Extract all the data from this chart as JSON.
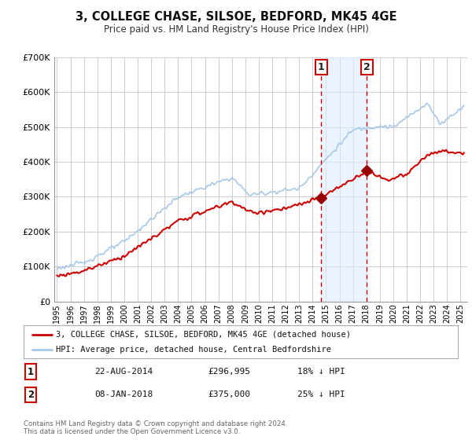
{
  "title": "3, COLLEGE CHASE, SILSOE, BEDFORD, MK45 4GE",
  "subtitle": "Price paid vs. HM Land Registry's House Price Index (HPI)",
  "bg_color": "#ffffff",
  "grid_color": "#cccccc",
  "hpi_color": "#a8c8e8",
  "price_color": "#cc0000",
  "marker_color": "#990000",
  "shade_color": "#ddeeff",
  "vline_color": "#cc0000",
  "ylim": [
    0,
    700000
  ],
  "yticks": [
    0,
    100000,
    200000,
    300000,
    400000,
    500000,
    600000,
    700000
  ],
  "ytick_labels": [
    "£0",
    "£100K",
    "£200K",
    "£300K",
    "£400K",
    "£500K",
    "£600K",
    "£700K"
  ],
  "xmin": 1994.8,
  "xmax": 2025.5,
  "sale1_x": 2014.644,
  "sale1_y": 296995,
  "sale2_x": 2018.019,
  "sale2_y": 375000,
  "legend_line1": "3, COLLEGE CHASE, SILSOE, BEDFORD, MK45 4GE (detached house)",
  "legend_line2": "HPI: Average price, detached house, Central Bedfordshire",
  "table_row1_num": "1",
  "table_row1_date": "22-AUG-2014",
  "table_row1_price": "£296,995",
  "table_row1_hpi": "18% ↓ HPI",
  "table_row2_num": "2",
  "table_row2_date": "08-JAN-2018",
  "table_row2_price": "£375,000",
  "table_row2_hpi": "25% ↓ HPI",
  "footnote1": "Contains HM Land Registry data © Crown copyright and database right 2024.",
  "footnote2": "This data is licensed under the Open Government Licence v3.0."
}
